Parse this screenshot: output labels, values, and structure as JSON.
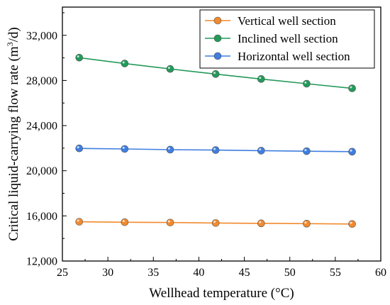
{
  "chart_data": {
    "type": "line",
    "title": "",
    "xlabel": "Wellhead temperature (°C)",
    "ylabel": {
      "prefix": "Critical liquid-carrying flow rate (m",
      "sup": "3",
      "suffix": "/d)"
    },
    "xlim": [
      25,
      60
    ],
    "ylim": [
      12000,
      34500
    ],
    "x_ticks": [
      25,
      30,
      35,
      40,
      45,
      50,
      55,
      60
    ],
    "y_ticks": [
      12000,
      16000,
      20000,
      24000,
      28000,
      32000
    ],
    "x_tick_labels": [
      "25",
      "30",
      "35",
      "40",
      "45",
      "50",
      "55",
      "60"
    ],
    "y_tick_labels": [
      "12,000",
      "16,000",
      "20,000",
      "24,000",
      "28,000",
      "32,000"
    ],
    "x": [
      26.85,
      31.85,
      36.85,
      41.85,
      46.85,
      51.85,
      56.85
    ],
    "legend_position": "top-right",
    "grid": false,
    "series": [
      {
        "name": "Vertical well section",
        "color": "#f28a2e",
        "values": [
          15480,
          15440,
          15410,
          15370,
          15340,
          15310,
          15280
        ]
      },
      {
        "name": "Inclined well section",
        "color": "#239a5a",
        "values": [
          30020,
          29500,
          29020,
          28570,
          28130,
          27710,
          27300
        ]
      },
      {
        "name": "Horizontal well section",
        "color": "#3f7ee0",
        "values": [
          21980,
          21930,
          21870,
          21830,
          21780,
          21730,
          21690
        ]
      }
    ]
  }
}
